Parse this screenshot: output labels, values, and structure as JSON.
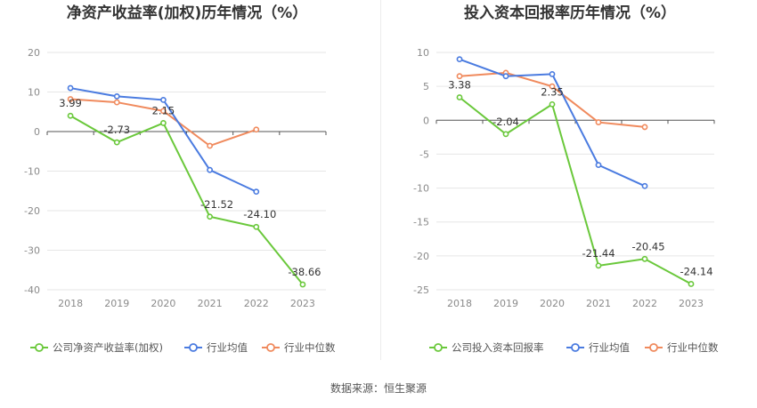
{
  "source_label": "数据来源：恒生聚源",
  "colors": {
    "company": "#6ac83b",
    "industry_avg": "#4a7be0",
    "industry_median": "#f08a5d"
  },
  "chart_data": [
    {
      "type": "line",
      "title": "净资产收益率(加权)历年情况（%）",
      "categories": [
        "2018",
        "2019",
        "2020",
        "2021",
        "2022",
        "2023"
      ],
      "ylim": [
        -40,
        20
      ],
      "yticks": [
        20,
        10,
        0,
        -10,
        -20,
        -30,
        -40
      ],
      "grid": true,
      "legend_position": "bottom",
      "series": [
        {
          "name": "公司净资产收益率(加权)",
          "key": "company",
          "values": [
            3.99,
            -2.73,
            2.15,
            -21.52,
            -24.1,
            -38.66
          ],
          "labels": [
            "3.99",
            "-2.73",
            "2.15",
            "-21.52",
            "-24.10",
            "-38.66"
          ]
        },
        {
          "name": "行业均值",
          "key": "industry_avg",
          "values": [
            11.0,
            8.9,
            8.0,
            -9.7,
            -15.2,
            null
          ]
        },
        {
          "name": "行业中位数",
          "key": "industry_median",
          "values": [
            8.2,
            7.4,
            5.2,
            -3.6,
            0.5,
            null
          ]
        }
      ]
    },
    {
      "type": "line",
      "title": "投入资本回报率历年情况（%）",
      "categories": [
        "2018",
        "2019",
        "2020",
        "2021",
        "2022",
        "2023"
      ],
      "ylim": [
        -25,
        10
      ],
      "yticks": [
        10,
        5,
        0,
        -5,
        -10,
        -15,
        -20,
        -25
      ],
      "grid": true,
      "legend_position": "bottom",
      "series": [
        {
          "name": "公司投入资本回报率",
          "key": "company",
          "values": [
            3.38,
            -2.04,
            2.35,
            -21.44,
            -20.45,
            -24.14
          ],
          "labels": [
            "3.38",
            "-2.04",
            "2.35",
            "-21.44",
            "-20.45",
            "-24.14"
          ]
        },
        {
          "name": "行业均值",
          "key": "industry_avg",
          "values": [
            9.0,
            6.5,
            6.8,
            -6.6,
            -9.7,
            null
          ]
        },
        {
          "name": "行业中位数",
          "key": "industry_median",
          "values": [
            6.5,
            7.0,
            5.0,
            -0.3,
            -1.0,
            null
          ]
        }
      ]
    }
  ]
}
